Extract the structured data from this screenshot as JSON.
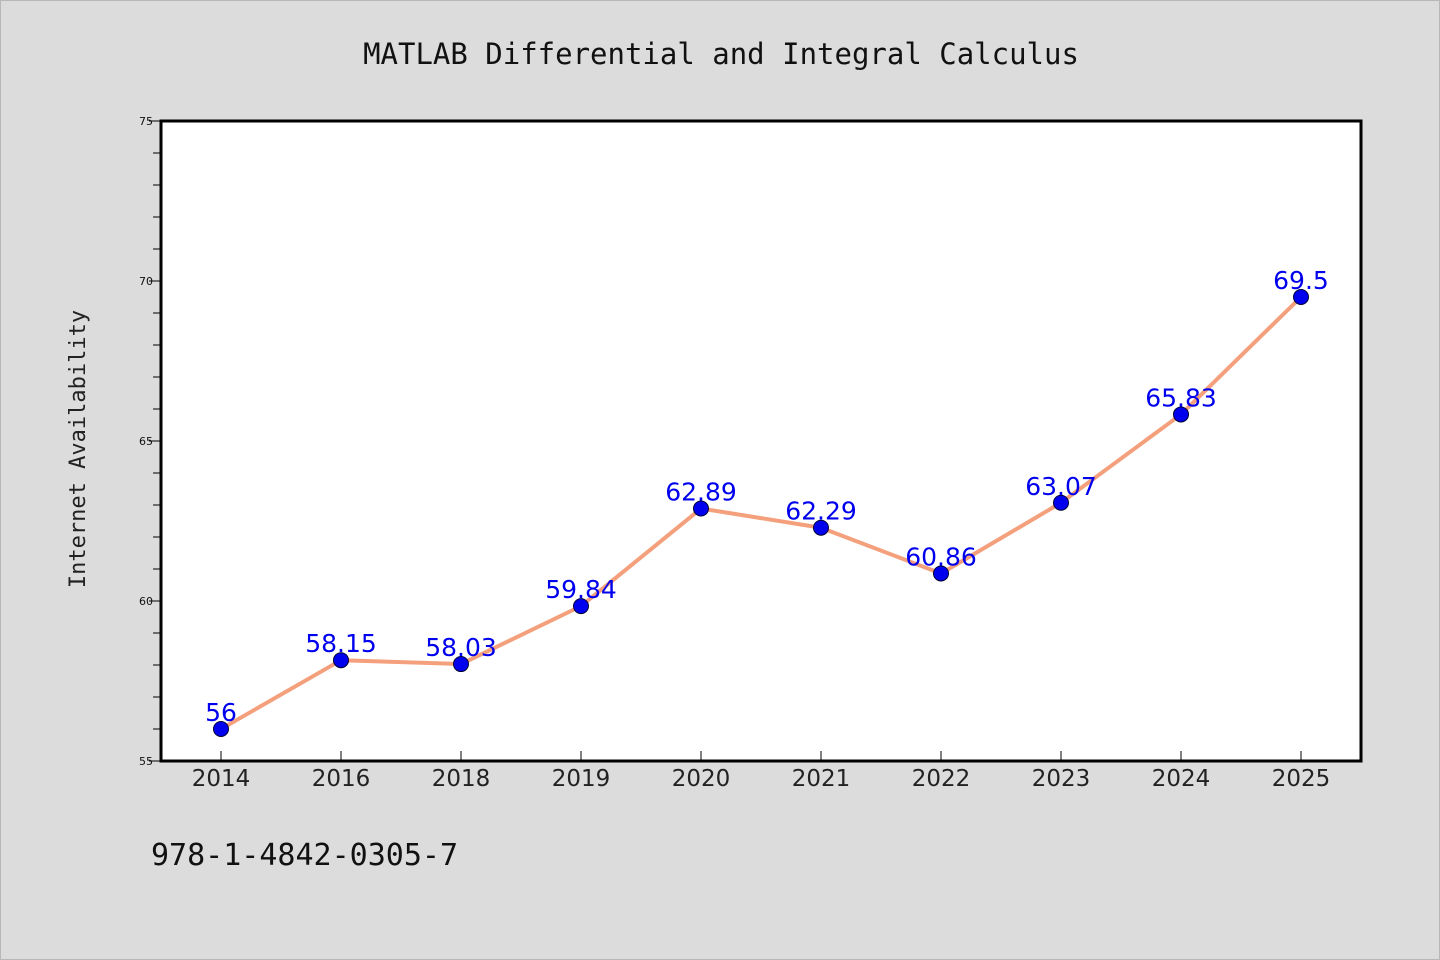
{
  "chart_data": {
    "type": "line",
    "title": "MATLAB Differential and Integral Calculus",
    "xlabel": "",
    "ylabel": "Internet Availability",
    "categories": [
      "2014",
      "2016",
      "2018",
      "2019",
      "2020",
      "2021",
      "2022",
      "2023",
      "2024",
      "2025"
    ],
    "series": [
      {
        "values": [
          56,
          58.15,
          58.03,
          59.84,
          62.89,
          62.29,
          60.86,
          63.07,
          65.83,
          69.5
        ],
        "labels": [
          "56",
          "58.15",
          "58.03",
          "59.84",
          "62.89",
          "62.29",
          "60.86",
          "63.07",
          "65.83",
          "69.5"
        ],
        "line_color": "#f4a07c",
        "marker_color": "#0000ee",
        "label_color": "#0000ee"
      }
    ],
    "ylim": [
      55,
      75
    ],
    "yticks": [
      "55",
      "60",
      "65",
      "70",
      "75"
    ],
    "grid": false,
    "legend": "none",
    "annotation": "978-1-4842-0305-7"
  },
  "colors": {
    "background": "#dcdcdc",
    "plot_area": "#ffffff",
    "axes": "#000000"
  }
}
